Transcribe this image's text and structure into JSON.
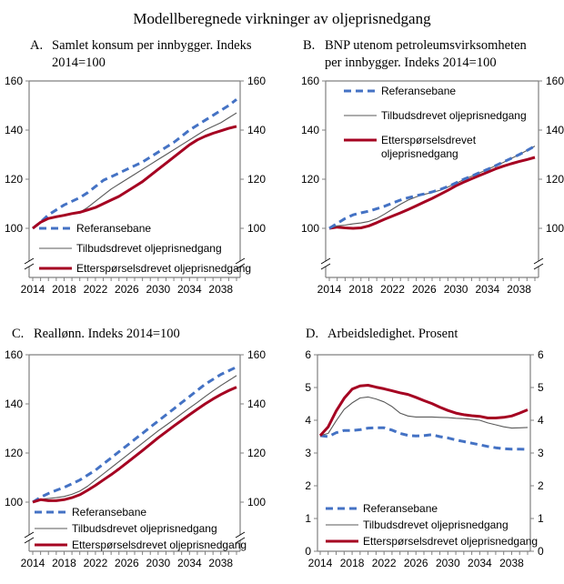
{
  "title": "Modellberegnede virkninger av oljeprisnedgang",
  "colors": {
    "referanse": "#4472C4",
    "tilbud": "#595959",
    "ettersporsel": "#A50021",
    "axis": "#808080"
  },
  "chart_data": [
    {
      "id": "A",
      "type": "line",
      "letter": "A.",
      "title_line1": "Samlet konsum per innbygger. Indeks",
      "title_line2": "2014=100",
      "xlabel": "",
      "ylabel": "",
      "x_ticks": [
        "2014",
        "2018",
        "2022",
        "2026",
        "2030",
        "2034",
        "2038"
      ],
      "y_ticks": [
        "100",
        "120",
        "140",
        "160"
      ],
      "ylim": [
        80,
        160
      ],
      "axis_break": true,
      "legend_position": "bottom-left",
      "legend": [
        "Referansebane",
        "Tilbudsdrevet oljeprisnedgang",
        "Etterspørselsdrevet oljeprisnedgang"
      ],
      "x": [
        2014,
        2015,
        2016,
        2017,
        2018,
        2019,
        2020,
        2021,
        2022,
        2023,
        2024,
        2025,
        2026,
        2027,
        2028,
        2029,
        2030,
        2031,
        2032,
        2033,
        2034,
        2035,
        2036,
        2037,
        2038,
        2039,
        2040
      ],
      "series": [
        {
          "name": "Referansebane",
          "values": [
            100,
            102.5,
            105.5,
            107.5,
            109.5,
            111,
            112.5,
            114.5,
            117,
            119.5,
            121,
            122.5,
            124,
            125.5,
            127,
            129,
            131,
            133,
            135,
            137.5,
            140,
            142,
            144,
            146,
            148,
            150,
            152.5
          ]
        },
        {
          "name": "Tilbudsdrevet oljeprisnedgang",
          "values": [
            100,
            102.5,
            104,
            105,
            105.5,
            106,
            106.5,
            108.5,
            111,
            113.5,
            116,
            118,
            120,
            122,
            124,
            126,
            128,
            130,
            132,
            134,
            136,
            138,
            140,
            141.5,
            143,
            145,
            147
          ]
        },
        {
          "name": "Etterspørselsdrevet oljeprisnedgang",
          "values": [
            100,
            102.5,
            104,
            104.7,
            105.3,
            106,
            106.5,
            107.5,
            108.5,
            110,
            111.5,
            113,
            115,
            117,
            119,
            121.5,
            124,
            126.5,
            129,
            131.5,
            134,
            136,
            137.5,
            138.7,
            139.7,
            140.7,
            141.5
          ]
        }
      ]
    },
    {
      "id": "B",
      "type": "line",
      "letter": "B.",
      "title_line1": "BNP utenom petroleumsvirksomheten",
      "title_line2": "per innbygger. Indeks 2014=100",
      "xlabel": "",
      "ylabel": "",
      "x_ticks": [
        "2014",
        "2018",
        "2022",
        "2026",
        "2030",
        "2034",
        "2038"
      ],
      "y_ticks": [
        "100",
        "120",
        "140",
        "160"
      ],
      "ylim": [
        80,
        160
      ],
      "axis_break": true,
      "legend_position": "top-left",
      "legend": [
        "Referansebane",
        "Tilbudsdrevet oljeprisnedgang",
        "Etterspørselsdrevet",
        "oljeprisnedgang"
      ],
      "x": [
        2014,
        2015,
        2016,
        2017,
        2018,
        2019,
        2020,
        2021,
        2022,
        2023,
        2024,
        2025,
        2026,
        2027,
        2028,
        2029,
        2030,
        2031,
        2032,
        2033,
        2034,
        2035,
        2036,
        2037,
        2038,
        2039,
        2040
      ],
      "series": [
        {
          "name": "Referansebane",
          "values": [
            100,
            102,
            104,
            105.5,
            106.3,
            107,
            108,
            109,
            110.3,
            111.5,
            112.5,
            113.3,
            114,
            114.8,
            115.8,
            117,
            118.5,
            120,
            121.3,
            122.7,
            124,
            125.5,
            127,
            128.5,
            130,
            131.7,
            133.5
          ]
        },
        {
          "name": "Tilbudsdrevet oljeprisnedgang",
          "values": [
            100,
            101,
            101.3,
            101.8,
            102.2,
            102.8,
            104,
            105.8,
            107.8,
            109.8,
            111.5,
            112.8,
            113.8,
            114.6,
            115.5,
            116.8,
            118.3,
            119.8,
            121.2,
            122.6,
            124,
            125.4,
            126.8,
            128.4,
            130,
            131.7,
            133.5
          ]
        },
        {
          "name": "Etterspørselsdrevet oljeprisnedgang",
          "values": [
            100,
            100.5,
            100.2,
            100,
            100.2,
            101,
            102.3,
            103.7,
            105,
            106.3,
            107.7,
            109.2,
            110.7,
            112.2,
            113.8,
            115.5,
            117.3,
            118.8,
            120.2,
            121.5,
            122.8,
            124.2,
            125.3,
            126.3,
            127.2,
            128,
            128.9
          ]
        }
      ]
    },
    {
      "id": "C",
      "type": "line",
      "letter": "C.",
      "title_line1": "Reallønn. Indeks 2014=100",
      "title_line2": "",
      "xlabel": "",
      "ylabel": "",
      "x_ticks": [
        "2014",
        "2018",
        "2022",
        "2026",
        "2030",
        "2034",
        "2038"
      ],
      "y_ticks": [
        "100",
        "120",
        "140",
        "160"
      ],
      "ylim": [
        80,
        160
      ],
      "axis_break": true,
      "legend_position": "bottom-left",
      "legend": [
        "Referansebane",
        "Tilbudsdrevet oljeprisnedgang",
        "Etterspørselsdrevet oljeprisnedgang"
      ],
      "x": [
        2014,
        2015,
        2016,
        2017,
        2018,
        2019,
        2020,
        2021,
        2022,
        2023,
        2024,
        2025,
        2026,
        2027,
        2028,
        2029,
        2030,
        2031,
        2032,
        2033,
        2034,
        2035,
        2036,
        2037,
        2038,
        2039,
        2040
      ],
      "series": [
        {
          "name": "Referansebane",
          "values": [
            100,
            102,
            103.5,
            104.8,
            106,
            107.5,
            109,
            111,
            113,
            115.5,
            118,
            120.5,
            123,
            125.5,
            128,
            130.5,
            133,
            135.5,
            138,
            140.5,
            143,
            145.5,
            148,
            150,
            152,
            153.5,
            155
          ]
        },
        {
          "name": "Tilbudsdrevet oljeprisnedgang",
          "values": [
            100,
            101.2,
            101.5,
            101.8,
            102.3,
            103.2,
            104.5,
            106.5,
            109,
            111.5,
            114,
            116.5,
            119,
            121.5,
            124,
            126.5,
            129,
            131.3,
            133.6,
            136,
            138.3,
            140.6,
            143,
            145.3,
            147.5,
            149.5,
            151.5
          ]
        },
        {
          "name": "Etterspørselsdrevet oljeprisnedgang",
          "values": [
            100,
            101,
            100.6,
            100.6,
            101,
            101.8,
            103,
            104.8,
            106.8,
            109,
            111.2,
            113.5,
            116,
            118.5,
            121,
            123.6,
            126.2,
            128.6,
            131,
            133.3,
            135.6,
            137.8,
            140,
            142,
            143.8,
            145.4,
            146.8
          ]
        }
      ]
    },
    {
      "id": "D",
      "type": "line",
      "letter": "D.",
      "title_line1": "Arbeidsledighet. Prosent",
      "title_line2": "",
      "xlabel": "",
      "ylabel": "",
      "x_ticks": [
        "2014",
        "2018",
        "2022",
        "2026",
        "2030",
        "2034",
        "2038"
      ],
      "y_ticks": [
        "0",
        "1",
        "2",
        "3",
        "4",
        "5",
        "6"
      ],
      "ylim": [
        0,
        6
      ],
      "axis_break": false,
      "legend_position": "bottom-left",
      "legend": [
        "Referansebane",
        "Tilbudsdrevet oljeprisnedgang",
        "Etterspørselsdrevet oljeprisnedgang"
      ],
      "x": [
        2014,
        2015,
        2016,
        2017,
        2018,
        2019,
        2020,
        2021,
        2022,
        2023,
        2024,
        2025,
        2026,
        2027,
        2028,
        2029,
        2030,
        2031,
        2032,
        2033,
        2034,
        2035,
        2036,
        2037,
        2038,
        2039,
        2040
      ],
      "series": [
        {
          "name": "Referansebane",
          "values": [
            3.53,
            3.5,
            3.62,
            3.69,
            3.69,
            3.71,
            3.76,
            3.77,
            3.77,
            3.7,
            3.6,
            3.54,
            3.52,
            3.53,
            3.56,
            3.5,
            3.46,
            3.4,
            3.35,
            3.3,
            3.25,
            3.2,
            3.16,
            3.13,
            3.12,
            3.12,
            3.11
          ]
        },
        {
          "name": "Tilbudsdrevet oljeprisnedgang",
          "values": [
            3.53,
            3.6,
            3.98,
            4.33,
            4.53,
            4.68,
            4.71,
            4.65,
            4.56,
            4.42,
            4.22,
            4.13,
            4.1,
            4.1,
            4.1,
            4.09,
            4.08,
            4.06,
            4.05,
            4.03,
            4.0,
            3.92,
            3.86,
            3.8,
            3.76,
            3.77,
            3.78
          ]
        },
        {
          "name": "Etterspørselsdrevet oljeprisnedgang",
          "values": [
            3.53,
            3.8,
            4.28,
            4.67,
            4.95,
            5.05,
            5.07,
            5.01,
            4.96,
            4.9,
            4.84,
            4.79,
            4.7,
            4.6,
            4.51,
            4.4,
            4.3,
            4.22,
            4.17,
            4.14,
            4.12,
            4.07,
            4.07,
            4.09,
            4.13,
            4.22,
            4.32
          ]
        }
      ]
    }
  ]
}
